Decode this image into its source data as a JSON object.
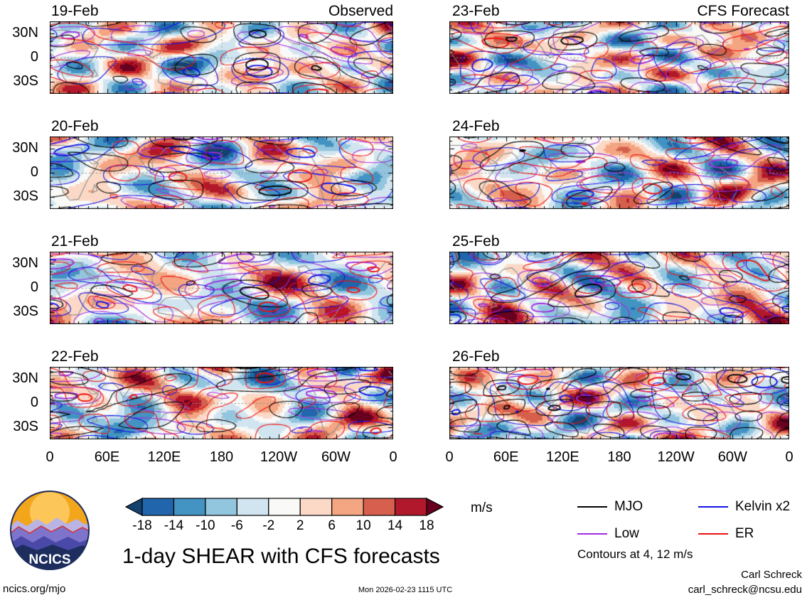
{
  "columns": {
    "left_label": "Observed",
    "right_label": "CFS Forecast"
  },
  "panels": [
    {
      "date": "19-Feb"
    },
    {
      "date": "20-Feb"
    },
    {
      "date": "21-Feb"
    },
    {
      "date": "22-Feb"
    },
    {
      "date": "23-Feb"
    },
    {
      "date": "24-Feb"
    },
    {
      "date": "25-Feb"
    },
    {
      "date": "26-Feb"
    }
  ],
  "axes": {
    "y_ticks": [
      "30N",
      "0",
      "30S"
    ],
    "x_ticks": [
      "0",
      "60E",
      "120E",
      "180",
      "120W",
      "60W",
      "0"
    ]
  },
  "colorbar": {
    "tick_labels": [
      "-18",
      "-14",
      "-10",
      "-6",
      "-2",
      "2",
      "6",
      "10",
      "14",
      "18"
    ],
    "levels": [
      -18,
      -14,
      -10,
      -6,
      -2,
      2,
      6,
      10,
      14,
      18
    ],
    "colors": [
      "#14426e",
      "#2166ac",
      "#4393c3",
      "#92c5de",
      "#d1e5f0",
      "#f9f9f7",
      "#fbd9c6",
      "#f4a582",
      "#d6604d",
      "#b2182b",
      "#67001f"
    ],
    "units_label": "m/s"
  },
  "legend": {
    "items": [
      {
        "label": "MJO",
        "color": "#000000"
      },
      {
        "label": "Kelvin x2",
        "color": "#1212e6"
      },
      {
        "label": "Low",
        "color": "#a22be0"
      },
      {
        "label": "ER",
        "color": "#ee1111"
      }
    ],
    "note": "Contours at 4, 12 m/s"
  },
  "footer": {
    "title": "1-day SHEAR with CFS forecasts",
    "logo_text": "NCICS",
    "site": "ncics.org/mjo",
    "timestamp": "Mon 2026-02-23 1115 UTC",
    "credit_name": "Carl Schreck",
    "credit_email": "carl_schreck@ncsu.edu"
  },
  "chart_data": {
    "type": "heatmap",
    "title": "1-day SHEAR with CFS forecasts",
    "units": "m/s",
    "layout": "2 columns x 4 rows of longitude-latitude map panels sharing axes",
    "columns": [
      {
        "label": "Observed",
        "panel_dates": [
          "19-Feb",
          "20-Feb",
          "21-Feb",
          "22-Feb"
        ]
      },
      {
        "label": "CFS Forecast",
        "panel_dates": [
          "23-Feb",
          "24-Feb",
          "25-Feb",
          "26-Feb"
        ]
      }
    ],
    "x_axis": {
      "tick_labels": [
        "0",
        "60E",
        "120E",
        "180",
        "120W",
        "60W",
        "0"
      ],
      "range": "0 to 360 degrees longitude"
    },
    "y_axis": {
      "tick_labels": [
        "30N",
        "0",
        "30S"
      ],
      "range": "45S to 45N latitude"
    },
    "fill": {
      "quantity": "1-day shear anomaly",
      "levels_m_per_s": [
        -18,
        -14,
        -10,
        -6,
        -2,
        2,
        6,
        10,
        14,
        18
      ],
      "palette": "dark blue (strong negative) through white to dark red (strong positive)"
    },
    "contour_overlays": [
      {
        "name": "MJO",
        "color": "black"
      },
      {
        "name": "Kelvin x2",
        "color": "blue"
      },
      {
        "name": "Low",
        "color": "purple"
      },
      {
        "name": "ER",
        "color": "red"
      }
    ],
    "contour_levels_note": "Contours at 4, 12 m/s",
    "note": "Filled-contour spatial anomaly fields; individual grid values are not labeled in the figure."
  }
}
